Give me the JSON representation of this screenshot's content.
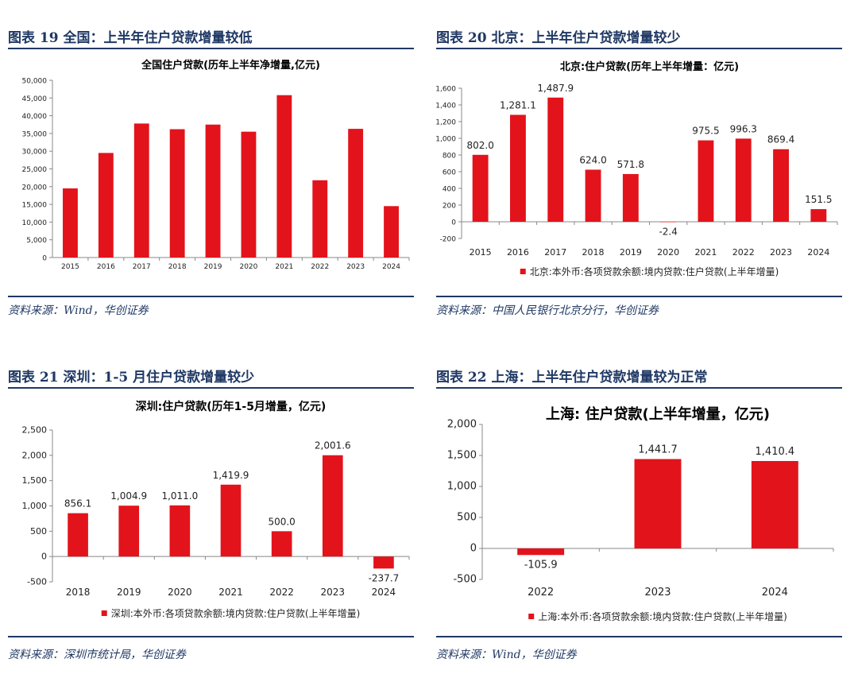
{
  "panels": [
    {
      "fig_title": "图表 19   全国：上半年住户贷款增量较低",
      "source": "资料来源：Wind，华创证券",
      "chart_data": {
        "type": "bar",
        "title": "全国住户贷款(历年上半年净增量,亿元)",
        "categories": [
          "2015",
          "2016",
          "2017",
          "2018",
          "2019",
          "2020",
          "2021",
          "2022",
          "2023",
          "2024"
        ],
        "values": [
          19500,
          29500,
          37800,
          36200,
          37500,
          35500,
          45800,
          21800,
          36300,
          14500
        ],
        "ylim": [
          0,
          50000
        ],
        "yticks": [
          0,
          5000,
          10000,
          15000,
          20000,
          25000,
          30000,
          35000,
          40000,
          45000,
          50000
        ],
        "ytick_labels": [
          "0",
          "5,000",
          "10,000",
          "15,000",
          "20,000",
          "25,000",
          "30,000",
          "35,000",
          "40,000",
          "45,000",
          "50,000"
        ],
        "data_labels": [],
        "legend": "",
        "bar_color": "#e3131b"
      }
    },
    {
      "fig_title": "图表 20   北京：上半年住户贷款增量较少",
      "source": "资料来源：中国人民银行北京分行，华创证券",
      "chart_data": {
        "type": "bar",
        "title": "北京:住户贷款(历年上半年增量：亿元)",
        "categories": [
          "2015",
          "2016",
          "2017",
          "2018",
          "2019",
          "2020",
          "2021",
          "2022",
          "2023",
          "2024"
        ],
        "values": [
          802.0,
          1281.1,
          1487.9,
          624.0,
          571.8,
          -2.4,
          975.5,
          996.3,
          869.4,
          151.5
        ],
        "ylim": [
          -200,
          1600
        ],
        "yticks": [
          -200,
          0,
          200,
          400,
          600,
          800,
          1000,
          1200,
          1400,
          1600
        ],
        "ytick_labels": [
          "-200",
          "0",
          "200",
          "400",
          "600",
          "800",
          "1,000",
          "1,200",
          "1,400",
          "1,600"
        ],
        "data_labels": [
          "802.0",
          "1,281.1",
          "1,487.9",
          "624.0",
          "571.8",
          "-2.4",
          "975.5",
          "996.3",
          "869.4",
          "151.5"
        ],
        "legend": "北京:本外币:各项贷款余额:境内贷款:住户贷款(上半年增量)",
        "bar_color": "#e3131b"
      }
    },
    {
      "fig_title": "图表 21   深圳：1-5 月住户贷款增量较少",
      "source": "资料来源：深圳市统计局，华创证券",
      "chart_data": {
        "type": "bar",
        "title": "深圳:住户贷款(历年1-5月增量，亿元)",
        "categories": [
          "2018",
          "2019",
          "2020",
          "2021",
          "2022",
          "2023",
          "2024"
        ],
        "values": [
          856.1,
          1004.9,
          1011.0,
          1419.9,
          500.0,
          2001.6,
          -237.7
        ],
        "ylim": [
          -500,
          2500
        ],
        "yticks": [
          -500,
          0,
          500,
          1000,
          1500,
          2000,
          2500
        ],
        "ytick_labels": [
          "-500",
          "0",
          "500",
          "1,000",
          "1,500",
          "2,000",
          "2,500"
        ],
        "data_labels": [
          "856.1",
          "1,004.9",
          "1,011.0",
          "1,419.9",
          "500.0",
          "2,001.6",
          "-237.7"
        ],
        "legend": "深圳:本外币:各项贷款余额:境内贷款:住户贷款(上半年增量)",
        "bar_color": "#e3131b"
      }
    },
    {
      "fig_title": "图表 22   上海：上半年住户贷款增量较为正常",
      "source": "资料来源：Wind，华创证券",
      "chart_data": {
        "type": "bar",
        "title": "上海: 住户贷款(上半年增量，亿元)",
        "categories": [
          "2022",
          "2023",
          "2024"
        ],
        "values": [
          -105.9,
          1441.7,
          1410.4
        ],
        "ylim": [
          -500,
          2000
        ],
        "yticks": [
          -500,
          0,
          500,
          1000,
          1500,
          2000
        ],
        "ytick_labels": [
          "-500",
          "0",
          "500",
          "1,000",
          "1,500",
          "2,000"
        ],
        "data_labels": [
          "-105.9",
          "1,441.7",
          "1,410.4"
        ],
        "legend": "上海:本外币:各项贷款余额:境内贷款:住户贷款(上半年增量)",
        "bar_color": "#e3131b"
      }
    }
  ]
}
